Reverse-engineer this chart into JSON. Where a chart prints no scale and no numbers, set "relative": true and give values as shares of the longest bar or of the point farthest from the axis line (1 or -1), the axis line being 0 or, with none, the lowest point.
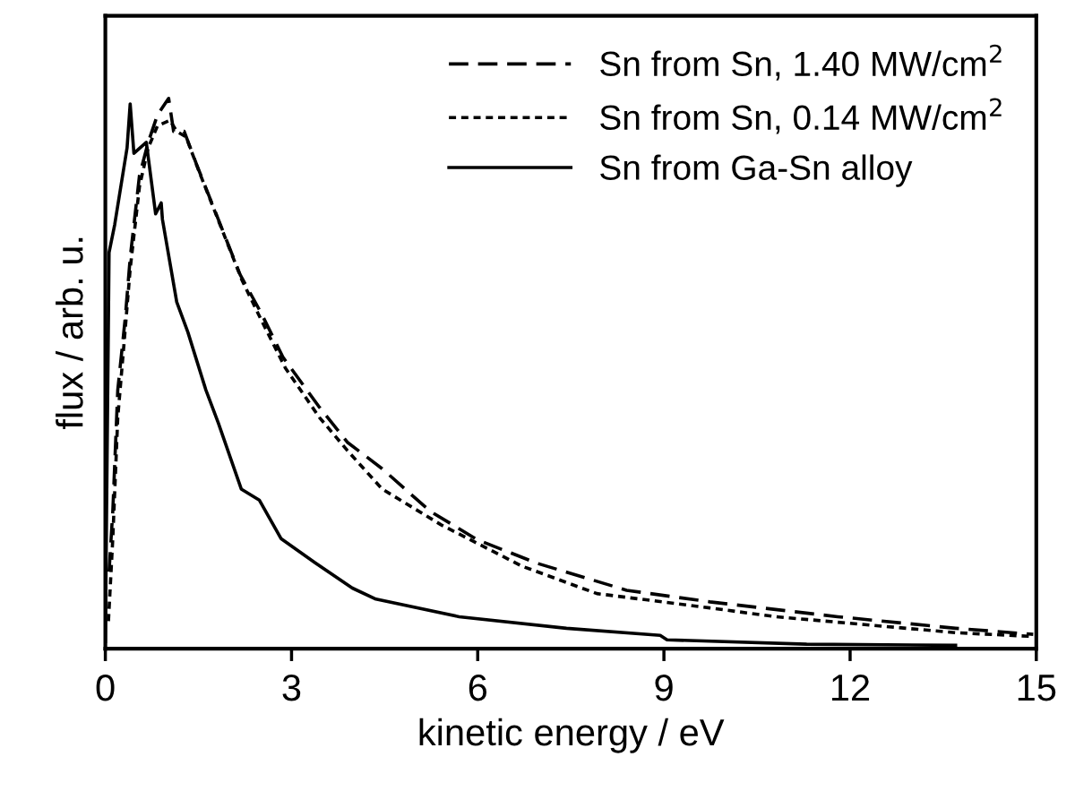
{
  "chart_data": {
    "type": "line",
    "xlabel": "kinetic energy / eV",
    "ylabel": "flux / arb. u.",
    "relative": true,
    "xlim": [
      0,
      15
    ],
    "xticks": [
      0,
      3,
      6,
      9,
      12,
      15
    ],
    "tick_labels": "x",
    "legend": "top right",
    "grid": false,
    "marker": "none",
    "series": [
      {
        "name": "Sn from Sn, 1.40 MW/cm$^{2}$",
        "color": "#000000",
        "line_style": "dashed",
        "x": [
          0.06,
          0.12,
          0.2,
          0.32,
          0.4,
          0.55,
          0.69,
          0.84,
          1.02,
          1.1,
          1.27,
          1.47,
          1.82,
          2.17,
          2.51,
          2.86,
          3.44,
          3.9,
          4.46,
          5.23,
          5.99,
          6.96,
          8.4,
          9.74,
          11.8,
          13.7,
          14.95
        ],
        "values": [
          0.14,
          0.25,
          0.47,
          0.6,
          0.71,
          0.86,
          0.92,
          0.97,
          1.0,
          0.94,
          0.94,
          0.88,
          0.78,
          0.68,
          0.61,
          0.53,
          0.44,
          0.375,
          0.327,
          0.25,
          0.198,
          0.155,
          0.106,
          0.085,
          0.058,
          0.037,
          0.026
        ]
      },
      {
        "name": "Sn from Sn, 0.14 MW/cm$^{2}$",
        "color": "#000000",
        "line_style": "dotted",
        "x": [
          0.05,
          0.12,
          0.2,
          0.32,
          0.4,
          0.55,
          0.69,
          0.84,
          1.04,
          1.15,
          1.3,
          1.5,
          1.85,
          2.2,
          2.5,
          2.9,
          3.45,
          3.9,
          4.46,
          5.41,
          6.71,
          7.92,
          9.74,
          10.8,
          13.7,
          14.95
        ],
        "values": [
          0.05,
          0.2,
          0.42,
          0.58,
          0.69,
          0.84,
          0.91,
          0.95,
          0.96,
          0.94,
          0.93,
          0.87,
          0.77,
          0.67,
          0.6,
          0.51,
          0.42,
          0.36,
          0.29,
          0.225,
          0.15,
          0.1,
          0.074,
          0.058,
          0.029,
          0.022
        ]
      },
      {
        "name": "Sn from Ga-Sn alloy",
        "color": "#000000",
        "line_style": "solid",
        "x": [
          0.0,
          0.06,
          0.15,
          0.35,
          0.4,
          0.46,
          0.66,
          0.81,
          0.9,
          0.92,
          1.15,
          1.33,
          1.62,
          1.82,
          2.19,
          2.48,
          2.83,
          3.38,
          3.98,
          4.36,
          5.7,
          7.43,
          8.94,
          9.05,
          11.3,
          13.7
        ],
        "values": [
          0.013,
          0.72,
          0.77,
          0.91,
          0.99,
          0.9,
          0.92,
          0.79,
          0.81,
          0.78,
          0.63,
          0.575,
          0.47,
          0.41,
          0.29,
          0.27,
          0.2,
          0.156,
          0.11,
          0.09,
          0.058,
          0.037,
          0.024,
          0.016,
          0.008,
          0.006
        ]
      }
    ]
  }
}
